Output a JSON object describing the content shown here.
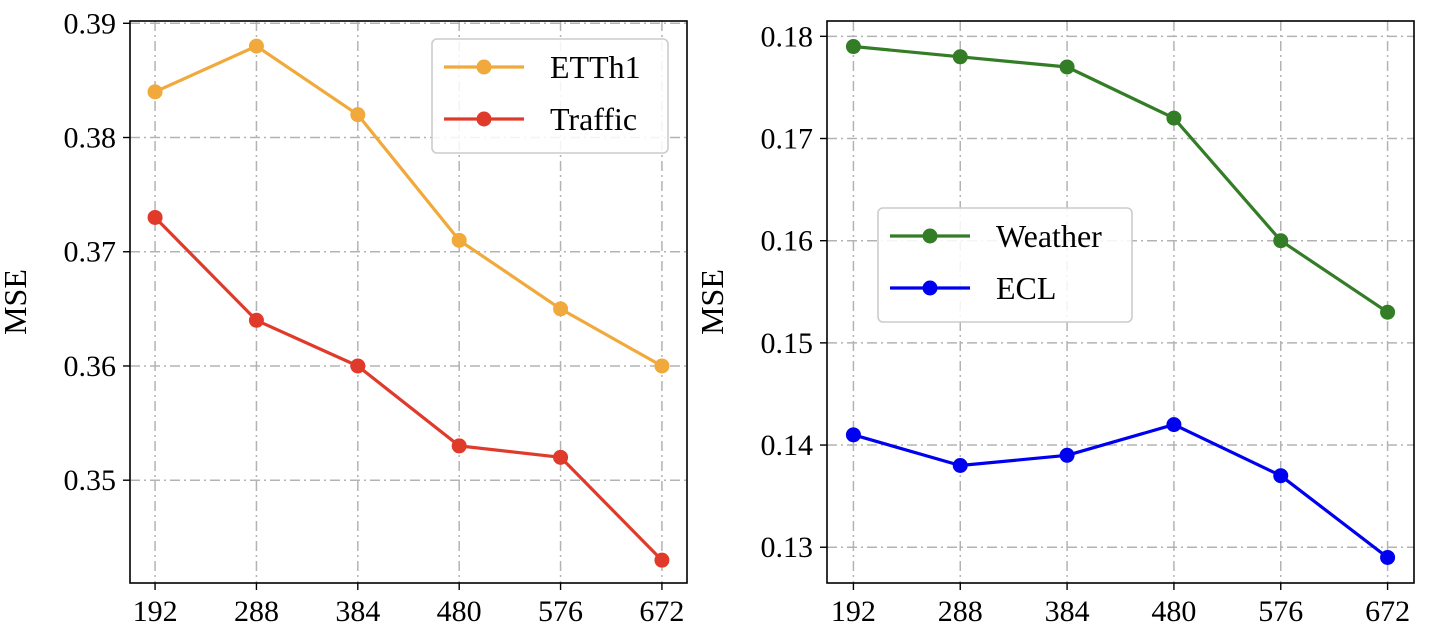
{
  "chart_data": [
    {
      "type": "line",
      "title": "",
      "xlabel": "",
      "ylabel": "MSE",
      "x": [
        192,
        288,
        384,
        480,
        576,
        672
      ],
      "x_ticks": [
        "192",
        "288",
        "384",
        "480",
        "576",
        "672"
      ],
      "ylim": [
        0.341,
        0.3902
      ],
      "y_ticks": [
        "0.35",
        "0.36",
        "0.37",
        "0.38",
        "0.39"
      ],
      "y_tick_values": [
        0.35,
        0.36,
        0.37,
        0.38,
        0.39
      ],
      "grid": true,
      "legend_position": "top-right",
      "series": [
        {
          "name": "ETTh1",
          "color": "#F0A93A",
          "values": [
            0.384,
            0.388,
            0.382,
            0.371,
            0.365,
            0.36
          ]
        },
        {
          "name": "Traffic",
          "color": "#E03A2B",
          "values": [
            0.373,
            0.364,
            0.36,
            0.353,
            0.352,
            0.343
          ]
        }
      ]
    },
    {
      "type": "line",
      "title": "",
      "xlabel": "",
      "ylabel": "MSE",
      "x": [
        192,
        288,
        384,
        480,
        576,
        672
      ],
      "x_ticks": [
        "192",
        "288",
        "384",
        "480",
        "576",
        "672"
      ],
      "ylim": [
        0.1265,
        0.1815
      ],
      "y_ticks": [
        "0.13",
        "0.14",
        "0.15",
        "0.16",
        "0.17",
        "0.18"
      ],
      "y_tick_values": [
        0.13,
        0.14,
        0.15,
        0.16,
        0.17,
        0.18
      ],
      "grid": true,
      "legend_position": "center-left",
      "series": [
        {
          "name": "Weather",
          "color": "#327D25",
          "values": [
            0.179,
            0.178,
            0.177,
            0.172,
            0.16,
            0.153
          ]
        },
        {
          "name": "ECL",
          "color": "#0000F0",
          "values": [
            0.141,
            0.138,
            0.139,
            0.142,
            0.137,
            0.129
          ]
        }
      ]
    }
  ]
}
